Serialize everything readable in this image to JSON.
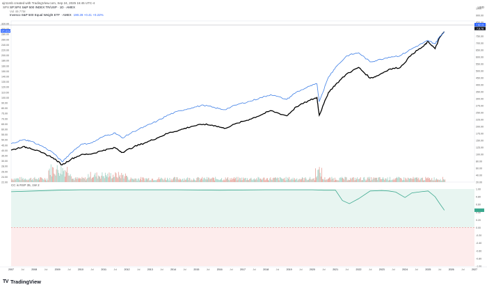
{
  "header": {
    "author_line": "ajr11mb created with TradingView.com, Sep 24, 2025 16:45 UTC-4",
    "ticker_label": "SPX",
    "currency": "USD"
  },
  "legend": {
    "main": "SP:SPX  S&P 500 INDEX TR/USP · 1D · AMEX",
    "sub": "Vol  49.77M",
    "compare": "Invesco S&P 500 Equal Weight ETF · AMEX",
    "compare_value": "190.28 +0.41 +0.22%",
    "indicator": "CC  is  RSP  35, 1W 2"
  },
  "colors": {
    "blue_series": "#3d7ee6",
    "black_series": "#000000",
    "up_volume": "#e7a9a1",
    "down_volume": "#a8d4c8",
    "oscillator": "#3aa88e"
  },
  "chart_data": {
    "type": "line",
    "xlabel": "",
    "ylabel": "",
    "x_ticks": [
      "2007",
      "Jul",
      "2008",
      "Jul",
      "2009",
      "Jul",
      "2010",
      "Jul",
      "2011",
      "Jul",
      "2012",
      "Jul",
      "2013",
      "Jul",
      "2014",
      "Jul",
      "2015",
      "Jul",
      "2016",
      "Jul",
      "2017",
      "Jul",
      "2018",
      "Jul",
      "2019",
      "Jul",
      "2020",
      "Jul",
      "2021",
      "Jul",
      "2022",
      "Jul",
      "2023",
      "Jul",
      "2024",
      "Jul",
      "2025",
      "Jul",
      "2026",
      "Jul",
      "2027"
    ],
    "y_ticks_left": [
      "320.00",
      "300.00",
      "280.00",
      "260.00",
      "240.00",
      "220.00",
      "200.00",
      "180.00",
      "160.00",
      "150.00",
      "140.00",
      "130.00",
      "120.00",
      "110.00",
      "100.00",
      "90.00",
      "80.00",
      "75.00",
      "70.00",
      "65.00",
      "60.00",
      "55.00",
      "50.00",
      "45.00",
      "40.00",
      "35.00",
      "30.00",
      "28.00",
      "26.00",
      "24.00",
      "22.00"
    ],
    "y_ticks_right": [
      "1000",
      "900.00",
      "850.00",
      "800.00",
      "750.00",
      "700.00",
      "650.00",
      "600.00",
      "550.00",
      "500.00",
      "450.00",
      "400.00",
      "350.00",
      "300.00",
      "275.00",
      "250.00",
      "225.00",
      "200.00",
      "175.00",
      "150.00",
      "125.00",
      "100.00",
      "80.00",
      "60.00",
      "40.00",
      "20.00"
    ],
    "price_badges": [
      "7.82.01",
      "7.8.78"
    ],
    "left_badge": "SPXEW",
    "scale": "log",
    "series": [
      {
        "name": "SP:SPX",
        "x": [
          2007.0,
          2007.5,
          2007.8,
          2008.3,
          2008.8,
          2009.2,
          2009.6,
          2010.0,
          2010.5,
          2011.0,
          2011.5,
          2011.8,
          2012.3,
          2012.8,
          2013.3,
          2013.8,
          2014.3,
          2014.8,
          2015.3,
          2015.8,
          2016.2,
          2016.8,
          2017.3,
          2017.8,
          2018.2,
          2018.9,
          2019.3,
          2019.9,
          2020.2,
          2020.3,
          2020.7,
          2021.0,
          2021.5,
          2022.0,
          2022.5,
          2022.8,
          2023.3,
          2023.8,
          2024.3,
          2024.8,
          2025.0,
          2025.3,
          2025.5,
          2025.7
        ],
        "values": [
          40,
          43,
          42,
          38,
          34,
          29,
          33,
          36,
          37,
          40,
          42,
          38,
          43,
          47,
          52,
          58,
          62,
          67,
          70,
          68,
          64,
          72,
          78,
          86,
          94,
          84,
          102,
          118,
          125,
          85,
          140,
          165,
          210,
          240,
          190,
          200,
          230,
          240,
          320,
          380,
          420,
          360,
          460,
          520
        ]
      },
      {
        "name": "Invesco S&P 500 Equal Weight ETF",
        "x": [
          2007.0,
          2007.5,
          2007.8,
          2008.3,
          2008.8,
          2009.2,
          2009.6,
          2010.0,
          2010.5,
          2011.0,
          2011.5,
          2011.8,
          2012.3,
          2012.8,
          2013.3,
          2013.8,
          2014.3,
          2014.8,
          2015.3,
          2015.8,
          2016.2,
          2016.8,
          2017.3,
          2017.8,
          2018.2,
          2018.9,
          2019.3,
          2019.9,
          2020.2,
          2020.3,
          2020.7,
          2021.0,
          2021.5,
          2022.0,
          2022.5,
          2022.8,
          2023.3,
          2023.8,
          2024.3,
          2024.8,
          2025.0,
          2025.3,
          2025.5,
          2025.7
        ],
        "values": [
          46,
          50,
          49,
          44,
          38,
          31,
          38,
          45,
          47,
          54,
          58,
          52,
          60,
          67,
          75,
          86,
          94,
          100,
          106,
          100,
          96,
          108,
          115,
          125,
          133,
          120,
          140,
          160,
          168,
          115,
          195,
          240,
          310,
          330,
          270,
          280,
          300,
          310,
          360,
          410,
          430,
          400,
          470,
          520
        ]
      }
    ],
    "oscillator": {
      "name": "CC",
      "x": [
        2007.0,
        2008.0,
        2009.0,
        2010.0,
        2012.0,
        2014.0,
        2016.0,
        2018.0,
        2019.5,
        2020.0,
        2020.5,
        2021.0,
        2021.3,
        2021.6,
        2022.0,
        2022.5,
        2023.0,
        2023.3,
        2023.6,
        2024.0,
        2024.3,
        2024.7,
        2025.0,
        2025.3,
        2025.5,
        2025.7
      ],
      "values": [
        0.93,
        0.95,
        0.97,
        0.98,
        0.98,
        0.98,
        0.97,
        0.98,
        0.98,
        0.98,
        0.97,
        0.97,
        0.7,
        0.62,
        0.75,
        0.95,
        0.96,
        0.95,
        0.92,
        0.78,
        0.9,
        0.93,
        0.95,
        0.8,
        0.62,
        0.45
      ],
      "y_ticks": [
        "1.00",
        "0.80",
        "0.60",
        "0.40",
        "0.20",
        "0.00",
        "-0.20",
        "-0.40",
        "-0.60",
        "-0.80",
        "-1.00"
      ],
      "ylim": [
        -1,
        1
      ]
    }
  }
}
